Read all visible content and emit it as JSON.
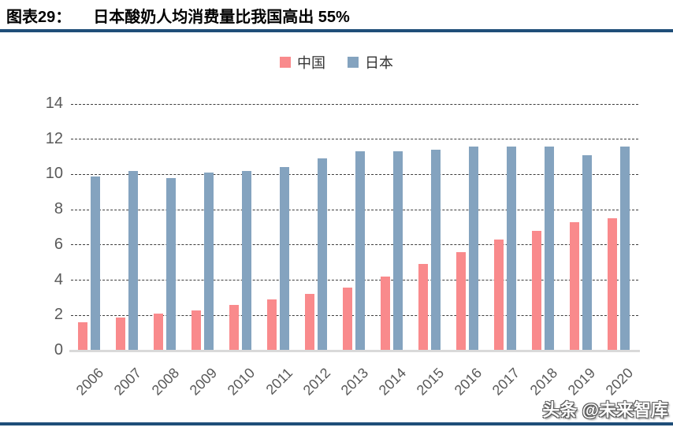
{
  "header": {
    "figure_label": "图表29：",
    "title": "日本酸奶人均消费量比我国高出 55%"
  },
  "watermark": "头条 @未来智库",
  "colors": {
    "china_series": "#F98A8C",
    "japan_series": "#84A3BF",
    "rule": "#1F4E79",
    "axis_text": "#595959",
    "baseline": "#D9D9D9"
  },
  "chart_data": {
    "type": "bar",
    "title": "日本酸奶人均消费量比我国高出 55%",
    "categories": [
      "2006",
      "2007",
      "2008",
      "2009",
      "2010",
      "2011",
      "2012",
      "2013",
      "2014",
      "2015",
      "2016",
      "2017",
      "2018",
      "2019",
      "2020"
    ],
    "series": [
      {
        "name": "中国",
        "color": "#F98A8C",
        "values": [
          1.6,
          1.9,
          2.1,
          2.3,
          2.6,
          2.9,
          3.2,
          3.6,
          4.2,
          4.9,
          5.6,
          6.3,
          6.8,
          7.3,
          7.5
        ]
      },
      {
        "name": "日本",
        "color": "#84A3BF",
        "values": [
          9.9,
          10.2,
          9.8,
          10.1,
          10.2,
          10.4,
          10.9,
          11.3,
          11.3,
          11.4,
          11.6,
          11.6,
          11.6,
          11.1,
          11.6
        ]
      }
    ],
    "xlabel": "",
    "ylabel": "",
    "ylim": [
      0,
      14
    ],
    "ytick_step": 2,
    "yticks": [
      0,
      2,
      4,
      6,
      8,
      10,
      12,
      14
    ],
    "grid": "horizontal-dashed",
    "legend_position": "top-center"
  }
}
